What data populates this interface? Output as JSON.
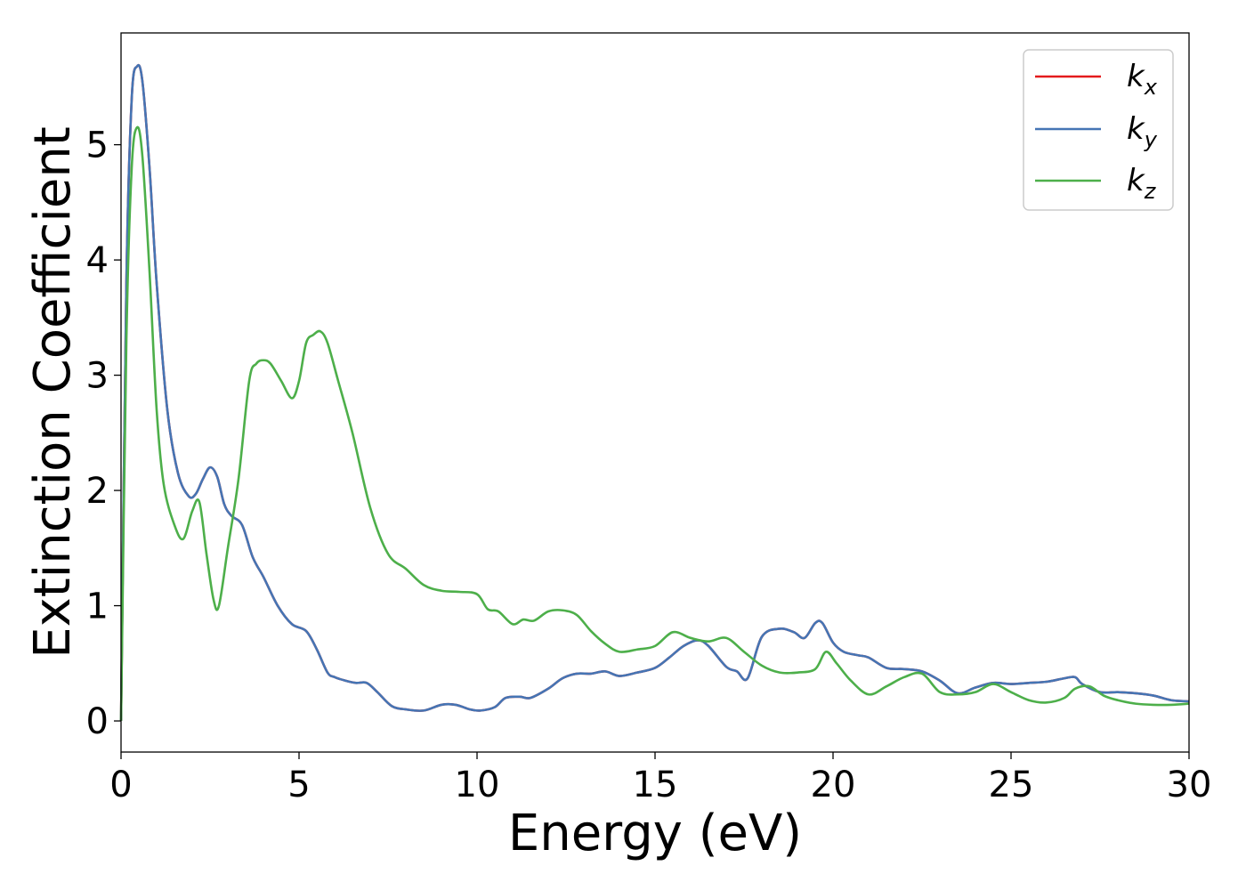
{
  "chart_data": {
    "type": "line",
    "xlabel": "Energy (eV)",
    "ylabel": "Extinction Coefficient",
    "xlim": [
      0,
      30
    ],
    "ylim": [
      -0.27,
      5.97
    ],
    "xticks": [
      0,
      5,
      10,
      15,
      20,
      25,
      30
    ],
    "yticks": [
      0,
      1,
      2,
      3,
      4,
      5
    ],
    "grid": false,
    "legend_position": "top-right",
    "series": [
      {
        "name": "k_x",
        "label_main": "k",
        "label_sub": "x",
        "color": "#e41a1c",
        "x": [
          0,
          0.15,
          0.3,
          0.45,
          0.6,
          0.8,
          1.0,
          1.3,
          1.6,
          1.9,
          2.1,
          2.3,
          2.5,
          2.7,
          2.9,
          3.1,
          3.4,
          3.7,
          4.0,
          4.4,
          4.8,
          5.2,
          5.5,
          5.8,
          6.0,
          6.3,
          6.6,
          6.9,
          7.2,
          7.6,
          8.0,
          8.5,
          9.0,
          9.4,
          9.8,
          10.1,
          10.5,
          10.8,
          11.2,
          11.5,
          12.0,
          12.4,
          12.8,
          13.2,
          13.6,
          14.0,
          14.5,
          15.0,
          15.4,
          15.8,
          16.2,
          16.5,
          17.0,
          17.3,
          17.6,
          18.0,
          18.5,
          18.9,
          19.2,
          19.5,
          19.7,
          20.0,
          20.3,
          20.7,
          21.0,
          21.5,
          22.0,
          22.5,
          23.0,
          23.5,
          24.0,
          24.5,
          25.0,
          25.5,
          26.0,
          26.5,
          26.8,
          27.0,
          27.5,
          28.0,
          28.5,
          29.0,
          29.5,
          30.0
        ],
        "y": [
          0.0,
          3.8,
          5.4,
          5.68,
          5.55,
          4.8,
          3.8,
          2.7,
          2.15,
          1.95,
          1.97,
          2.1,
          2.2,
          2.12,
          1.88,
          1.78,
          1.7,
          1.42,
          1.25,
          1.0,
          0.84,
          0.78,
          0.62,
          0.42,
          0.38,
          0.35,
          0.33,
          0.33,
          0.25,
          0.13,
          0.1,
          0.09,
          0.14,
          0.14,
          0.1,
          0.09,
          0.12,
          0.2,
          0.21,
          0.2,
          0.28,
          0.37,
          0.41,
          0.41,
          0.43,
          0.39,
          0.42,
          0.46,
          0.55,
          0.65,
          0.7,
          0.65,
          0.47,
          0.43,
          0.37,
          0.73,
          0.8,
          0.77,
          0.72,
          0.85,
          0.85,
          0.68,
          0.6,
          0.57,
          0.55,
          0.46,
          0.45,
          0.43,
          0.35,
          0.24,
          0.29,
          0.33,
          0.32,
          0.33,
          0.34,
          0.37,
          0.38,
          0.32,
          0.25,
          0.25,
          0.24,
          0.22,
          0.18,
          0.17
        ]
      },
      {
        "name": "k_y",
        "label_main": "k",
        "label_sub": "y",
        "color": "#4575b4",
        "x": [
          0,
          0.15,
          0.3,
          0.45,
          0.6,
          0.8,
          1.0,
          1.3,
          1.6,
          1.9,
          2.1,
          2.3,
          2.5,
          2.7,
          2.9,
          3.1,
          3.4,
          3.7,
          4.0,
          4.4,
          4.8,
          5.2,
          5.5,
          5.8,
          6.0,
          6.3,
          6.6,
          6.9,
          7.2,
          7.6,
          8.0,
          8.5,
          9.0,
          9.4,
          9.8,
          10.1,
          10.5,
          10.8,
          11.2,
          11.5,
          12.0,
          12.4,
          12.8,
          13.2,
          13.6,
          14.0,
          14.5,
          15.0,
          15.4,
          15.8,
          16.2,
          16.5,
          17.0,
          17.3,
          17.6,
          18.0,
          18.5,
          18.9,
          19.2,
          19.5,
          19.7,
          20.0,
          20.3,
          20.7,
          21.0,
          21.5,
          22.0,
          22.5,
          23.0,
          23.5,
          24.0,
          24.5,
          25.0,
          25.5,
          26.0,
          26.5,
          26.8,
          27.0,
          27.5,
          28.0,
          28.5,
          29.0,
          29.5,
          30.0
        ],
        "y": [
          0.0,
          3.8,
          5.4,
          5.68,
          5.55,
          4.8,
          3.8,
          2.7,
          2.15,
          1.95,
          1.97,
          2.1,
          2.2,
          2.12,
          1.88,
          1.78,
          1.7,
          1.42,
          1.25,
          1.0,
          0.84,
          0.78,
          0.62,
          0.42,
          0.38,
          0.35,
          0.33,
          0.33,
          0.25,
          0.13,
          0.1,
          0.09,
          0.14,
          0.14,
          0.1,
          0.09,
          0.12,
          0.2,
          0.21,
          0.2,
          0.28,
          0.37,
          0.41,
          0.41,
          0.43,
          0.39,
          0.42,
          0.46,
          0.55,
          0.65,
          0.7,
          0.65,
          0.47,
          0.43,
          0.37,
          0.73,
          0.8,
          0.77,
          0.72,
          0.85,
          0.85,
          0.68,
          0.6,
          0.57,
          0.55,
          0.46,
          0.45,
          0.43,
          0.35,
          0.24,
          0.29,
          0.33,
          0.32,
          0.33,
          0.34,
          0.37,
          0.38,
          0.32,
          0.25,
          0.25,
          0.24,
          0.22,
          0.18,
          0.17
        ]
      },
      {
        "name": "k_z",
        "label_main": "k",
        "label_sub": "z",
        "color": "#4daf4a",
        "x": [
          0,
          0.15,
          0.3,
          0.45,
          0.6,
          0.8,
          1.0,
          1.2,
          1.5,
          1.75,
          2.0,
          2.2,
          2.4,
          2.6,
          2.75,
          3.0,
          3.3,
          3.6,
          3.8,
          4.0,
          4.2,
          4.5,
          4.8,
          5.0,
          5.2,
          5.4,
          5.6,
          5.8,
          6.1,
          6.5,
          7.0,
          7.5,
          8.0,
          8.5,
          9.0,
          9.5,
          10.0,
          10.3,
          10.6,
          11.0,
          11.3,
          11.6,
          12.0,
          12.4,
          12.8,
          13.2,
          13.6,
          14.0,
          14.5,
          15.0,
          15.5,
          16.0,
          16.5,
          17.0,
          17.5,
          18.0,
          18.5,
          19.0,
          19.5,
          19.8,
          20.1,
          20.5,
          21.0,
          21.5,
          22.0,
          22.5,
          23.0,
          23.5,
          24.0,
          24.5,
          25.0,
          25.5,
          26.0,
          26.5,
          26.8,
          27.2,
          27.6,
          28.0,
          28.5,
          29.0,
          29.5,
          30.0
        ],
        "y": [
          0.0,
          3.3,
          4.8,
          5.15,
          4.9,
          3.9,
          2.7,
          2.05,
          1.7,
          1.58,
          1.82,
          1.9,
          1.45,
          1.05,
          1.0,
          1.5,
          2.1,
          2.95,
          3.1,
          3.13,
          3.1,
          2.95,
          2.8,
          2.95,
          3.28,
          3.35,
          3.38,
          3.28,
          2.95,
          2.5,
          1.85,
          1.45,
          1.32,
          1.18,
          1.13,
          1.12,
          1.1,
          0.97,
          0.95,
          0.84,
          0.88,
          0.87,
          0.95,
          0.96,
          0.92,
          0.78,
          0.67,
          0.6,
          0.62,
          0.65,
          0.77,
          0.72,
          0.69,
          0.72,
          0.6,
          0.48,
          0.42,
          0.42,
          0.45,
          0.6,
          0.5,
          0.35,
          0.23,
          0.3,
          0.38,
          0.41,
          0.25,
          0.23,
          0.25,
          0.32,
          0.25,
          0.18,
          0.16,
          0.2,
          0.28,
          0.3,
          0.22,
          0.18,
          0.15,
          0.14,
          0.14,
          0.15
        ]
      }
    ]
  }
}
